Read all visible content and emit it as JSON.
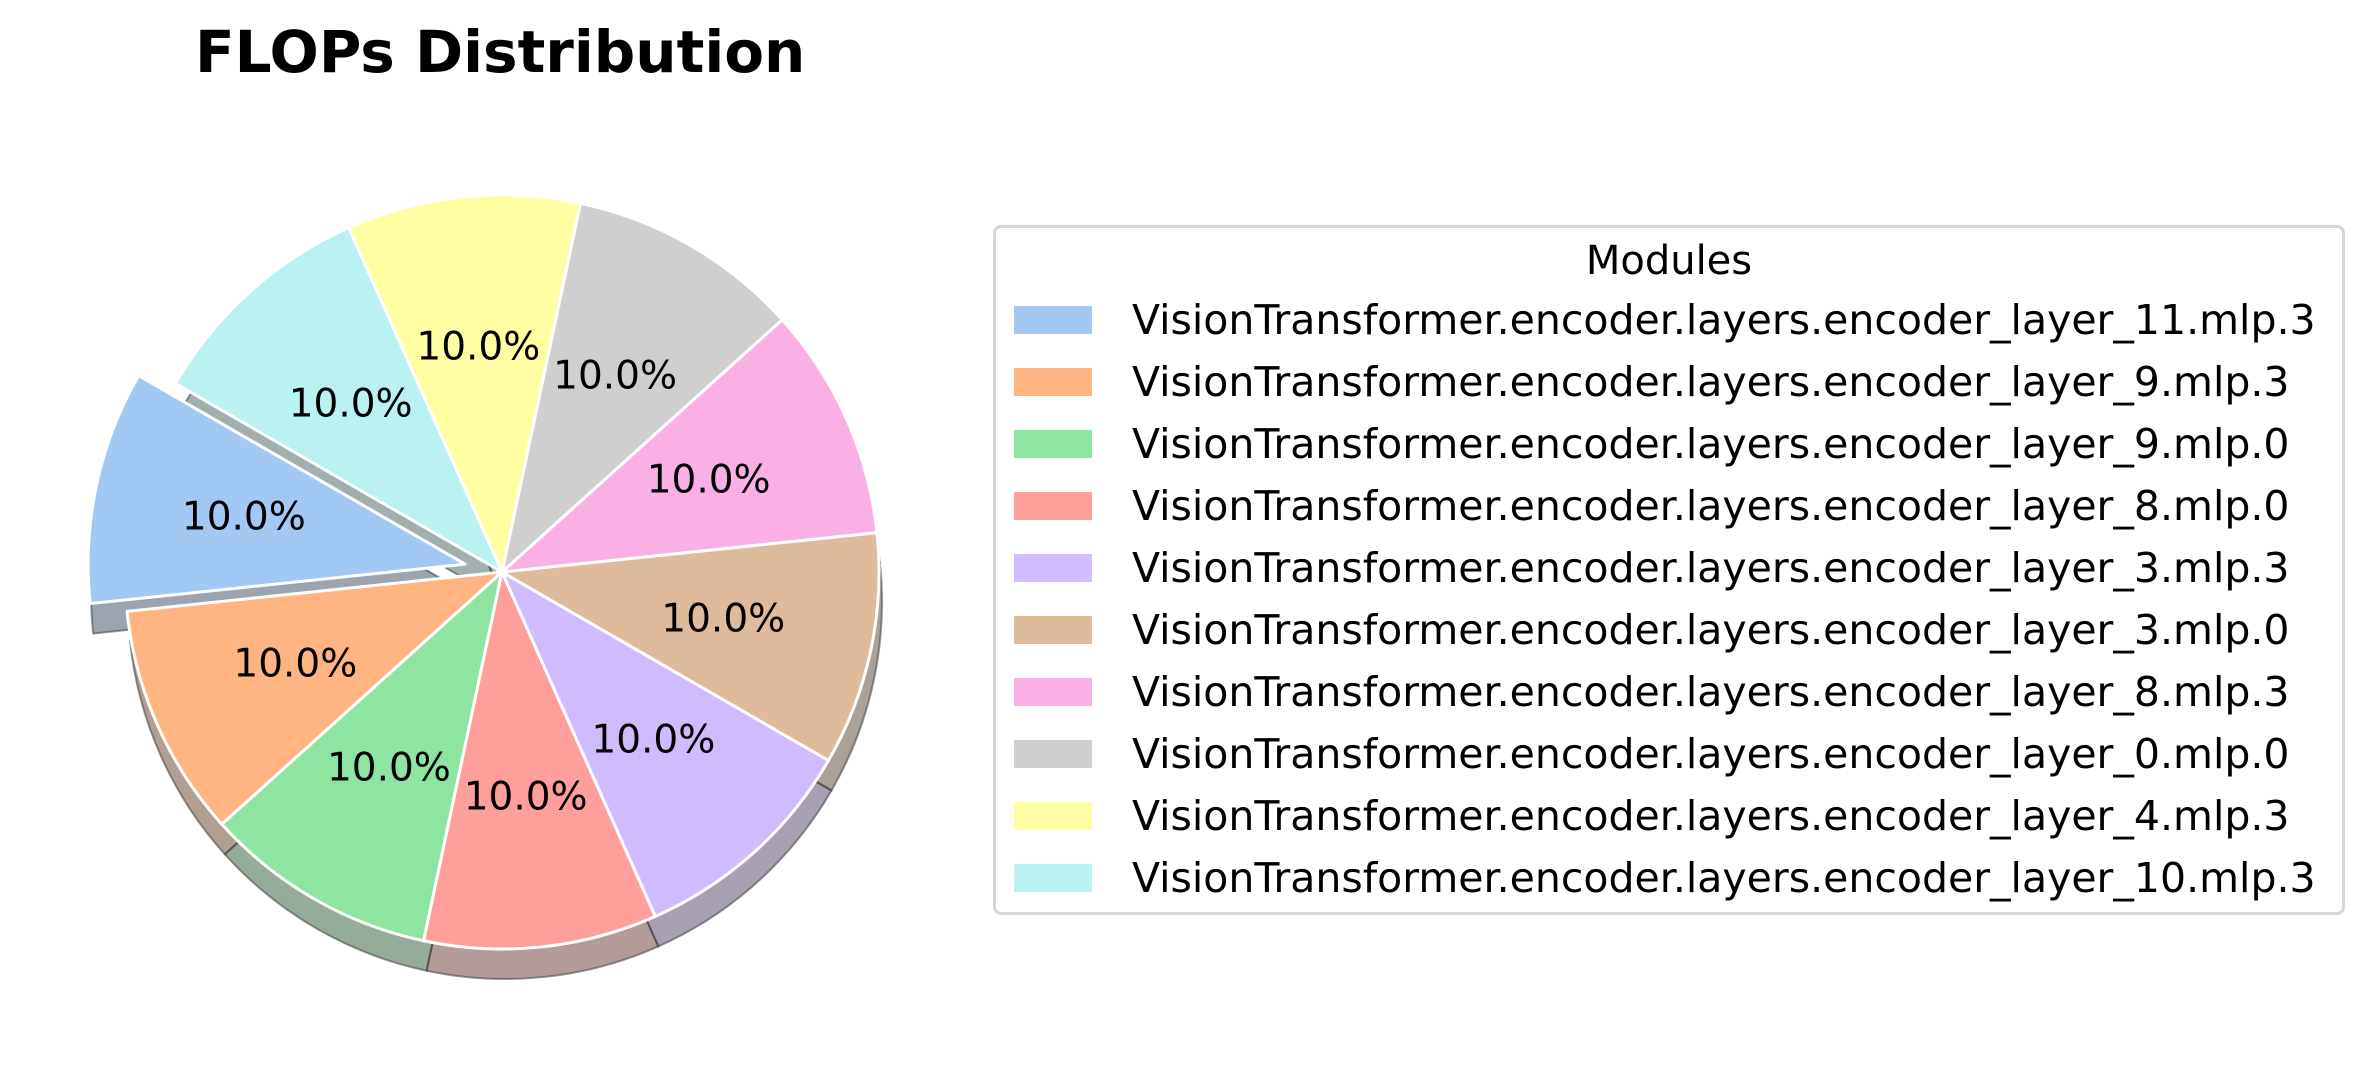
{
  "chart_data": {
    "type": "pie",
    "title": "FLOPs Distribution",
    "legend_title": "Modules",
    "legend_position": "right",
    "autopct_format": "percent_one_decimal",
    "start_angle_deg": 150,
    "direction": "counterclockwise",
    "shadow": true,
    "slices": [
      {
        "label": "VisionTransformer.encoder.layers.encoder_layer_11.mlp.3",
        "value": 10.0,
        "pct_label": "10.0%",
        "color": "#a1c9f4",
        "exploded": true
      },
      {
        "label": "VisionTransformer.encoder.layers.encoder_layer_9.mlp.3",
        "value": 10.0,
        "pct_label": "10.0%",
        "color": "#ffb482",
        "exploded": false
      },
      {
        "label": "VisionTransformer.encoder.layers.encoder_layer_9.mlp.0",
        "value": 10.0,
        "pct_label": "10.0%",
        "color": "#8de5a1",
        "exploded": false
      },
      {
        "label": "VisionTransformer.encoder.layers.encoder_layer_8.mlp.0",
        "value": 10.0,
        "pct_label": "10.0%",
        "color": "#ff9f9b",
        "exploded": false
      },
      {
        "label": "VisionTransformer.encoder.layers.encoder_layer_3.mlp.3",
        "value": 10.0,
        "pct_label": "10.0%",
        "color": "#d0bbff",
        "exploded": false
      },
      {
        "label": "VisionTransformer.encoder.layers.encoder_layer_3.mlp.0",
        "value": 10.0,
        "pct_label": "10.0%",
        "color": "#debb9b",
        "exploded": false
      },
      {
        "label": "VisionTransformer.encoder.layers.encoder_layer_8.mlp.3",
        "value": 10.0,
        "pct_label": "10.0%",
        "color": "#fab0e4",
        "exploded": false
      },
      {
        "label": "VisionTransformer.encoder.layers.encoder_layer_0.mlp.0",
        "value": 10.0,
        "pct_label": "10.0%",
        "color": "#cfcfcf",
        "exploded": false
      },
      {
        "label": "VisionTransformer.encoder.layers.encoder_layer_4.mlp.3",
        "value": 10.0,
        "pct_label": "10.0%",
        "color": "#fffea3",
        "exploded": false
      },
      {
        "label": "VisionTransformer.encoder.layers.encoder_layer_10.mlp.3",
        "value": 10.0,
        "pct_label": "10.0%",
        "color": "#b9f2f0",
        "exploded": false
      }
    ]
  }
}
